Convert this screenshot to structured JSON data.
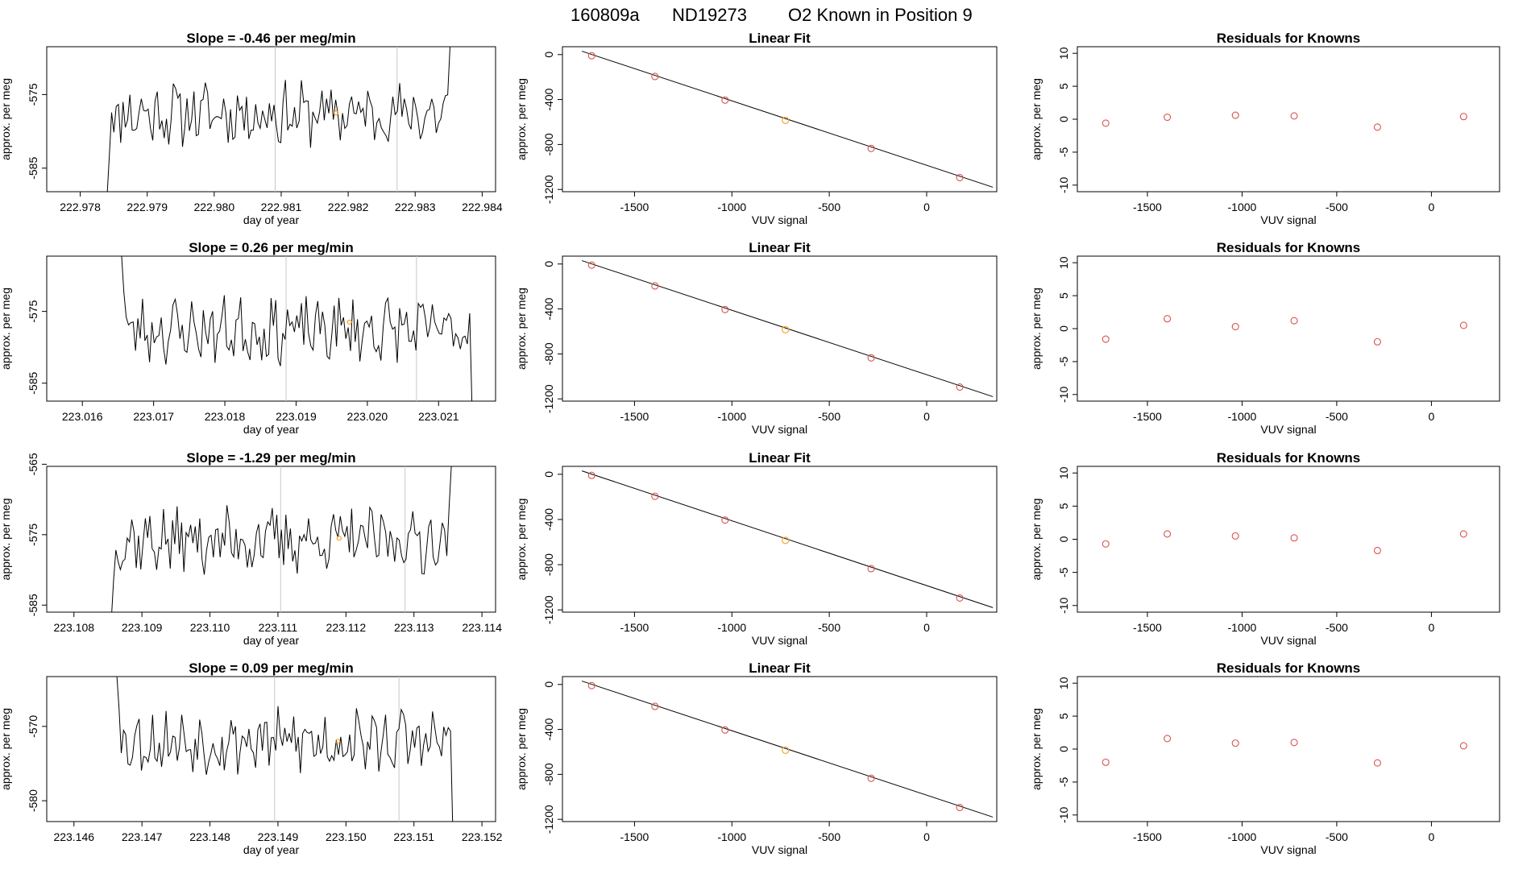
{
  "title": {
    "run": "160809a",
    "tank": "ND19273",
    "desc": "O2 Known in Position  9"
  },
  "colors": {
    "line": "#000000",
    "point": "#d9534f",
    "highlight": "#f0a020",
    "vline": "#c8c8c8"
  },
  "chart_data": [
    {
      "type": "line",
      "row": 1,
      "title": "Slope =  -0.46  per meg/min",
      "xlabel": "day of year",
      "ylabel": "approx. per meg",
      "xlim": [
        222.9775,
        222.9842
      ],
      "ylim": [
        -588.2,
        -568.5
      ],
      "xticks": [
        222.978,
        222.979,
        222.98,
        222.981,
        222.982,
        222.983,
        222.984
      ],
      "xtick_labels": [
        "222.978",
        "222.979",
        "222.980",
        "222.981",
        "222.982",
        "222.983",
        "222.984"
      ],
      "yticks": [
        -575,
        -585
      ],
      "ytick_labels": [
        "-575",
        "-585"
      ],
      "t_start": 222.9784,
      "t_end": 222.98352,
      "vlines": [
        222.98091,
        222.98273
      ],
      "marker": [
        222.98182,
        -577.5
      ],
      "seed": 11,
      "series_level": -577.6,
      "series_amp": 3.6,
      "start_y": -589.0,
      "end_y": -568.5
    },
    {
      "type": "scatter",
      "row": 1,
      "title": "Linear Fit",
      "xlabel": "VUV signal",
      "ylabel": "approx. per meg",
      "xlim": [
        -1870,
        360
      ],
      "ylim": [
        -1220,
        70
      ],
      "xticks": [
        -1500,
        -1000,
        -500,
        0
      ],
      "xtick_labels": [
        "-1500",
        "-1000",
        "-500",
        "0"
      ],
      "yticks": [
        0,
        -400,
        -800,
        -1200
      ],
      "ytick_labels": [
        "0",
        "-400",
        "-800",
        "-1200"
      ],
      "points_x": [
        -1720,
        -1395,
        -1035,
        -725,
        -285,
        170
      ],
      "points_y": [
        -10,
        -195,
        -405,
        -585,
        -835,
        -1095
      ],
      "highlight_index": 3,
      "fit_line": [
        [
          -1770,
          30
        ],
        [
          340,
          -1180
        ]
      ]
    },
    {
      "type": "scatter",
      "row": 1,
      "title": "Residuals for Knowns",
      "xlabel": "VUV signal",
      "ylabel": "approx. per meg",
      "xlim": [
        -1870,
        360
      ],
      "ylim": [
        -11,
        11
      ],
      "xticks": [
        -1500,
        -1000,
        -500,
        0
      ],
      "xtick_labels": [
        "-1500",
        "-1000",
        "-500",
        "0"
      ],
      "yticks": [
        10,
        5,
        0,
        -5,
        -10
      ],
      "ytick_labels": [
        "10",
        "5",
        "0",
        "-5",
        "-10"
      ],
      "points_x": [
        -1720,
        -1395,
        -1035,
        -725,
        -285,
        170
      ],
      "points_y": [
        -0.6,
        0.3,
        0.6,
        0.5,
        -1.2,
        0.4
      ]
    },
    {
      "type": "line",
      "row": 2,
      "title": "Slope =  0.26  per meg/min",
      "xlabel": "day of year",
      "ylabel": "approx. per meg",
      "xlim": [
        223.0155,
        223.0218
      ],
      "ylim": [
        -587.5,
        -567.3
      ],
      "xticks": [
        223.016,
        223.017,
        223.018,
        223.019,
        223.02,
        223.021
      ],
      "xtick_labels": [
        "223.016",
        "223.017",
        "223.018",
        "223.019",
        "223.020",
        "223.021"
      ],
      "yticks": [
        -575,
        -585
      ],
      "ytick_labels": [
        "-575",
        "-585"
      ],
      "t_start": 223.01655,
      "t_end": 223.02147,
      "vlines": [
        223.01886,
        223.02069
      ],
      "marker": [
        223.01975,
        -576.5
      ],
      "seed": 23,
      "series_level": -577.6,
      "series_amp": 3.8,
      "start_y": -567.0,
      "end_y": -588.5
    },
    {
      "type": "scatter",
      "row": 2,
      "title": "Linear Fit",
      "xlabel": "VUV signal",
      "ylabel": "approx. per meg",
      "xlim": [
        -1870,
        360
      ],
      "ylim": [
        -1220,
        70
      ],
      "xticks": [
        -1500,
        -1000,
        -500,
        0
      ],
      "xtick_labels": [
        "-1500",
        "-1000",
        "-500",
        "0"
      ],
      "yticks": [
        0,
        -400,
        -800,
        -1200
      ],
      "ytick_labels": [
        "0",
        "-400",
        "-800",
        "-1200"
      ],
      "points_x": [
        -1720,
        -1395,
        -1035,
        -725,
        -285,
        170
      ],
      "points_y": [
        -10,
        -195,
        -405,
        -585,
        -835,
        -1095
      ],
      "highlight_index": 3,
      "fit_line": [
        [
          -1770,
          30
        ],
        [
          340,
          -1180
        ]
      ]
    },
    {
      "type": "scatter",
      "row": 2,
      "title": "Residuals for Knowns",
      "xlabel": "VUV signal",
      "ylabel": "approx. per meg",
      "xlim": [
        -1870,
        360
      ],
      "ylim": [
        -11,
        11
      ],
      "xticks": [
        -1500,
        -1000,
        -500,
        0
      ],
      "xtick_labels": [
        "-1500",
        "-1000",
        "-500",
        "0"
      ],
      "yticks": [
        10,
        5,
        0,
        -5,
        -10
      ],
      "ytick_labels": [
        "10",
        "5",
        "0",
        "-5",
        "-10"
      ],
      "points_x": [
        -1720,
        -1395,
        -1035,
        -725,
        -285,
        170
      ],
      "points_y": [
        -1.6,
        1.5,
        0.3,
        1.2,
        -2.0,
        0.5
      ]
    },
    {
      "type": "line",
      "row": 3,
      "title": "Slope =  -1.29  per meg/min",
      "xlabel": "day of year",
      "ylabel": "approx. per meg",
      "xlim": [
        223.1076,
        223.1142
      ],
      "ylim": [
        -586.0,
        -565.3
      ],
      "xticks": [
        223.108,
        223.109,
        223.11,
        223.111,
        223.112,
        223.113,
        223.114
      ],
      "xtick_labels": [
        "223.108",
        "223.109",
        "223.110",
        "223.111",
        "223.112",
        "223.113",
        "223.114"
      ],
      "yticks": [
        -565,
        -575,
        -585
      ],
      "ytick_labels": [
        "-565",
        "-575",
        "-585"
      ],
      "t_start": 223.10855,
      "t_end": 223.11355,
      "vlines": [
        223.11104,
        223.11287
      ],
      "marker": [
        223.1119,
        -575.5
      ],
      "seed": 37,
      "series_level": -575.8,
      "series_amp": 3.9,
      "start_y": -587.0,
      "end_y": -565.3
    },
    {
      "type": "scatter",
      "row": 3,
      "title": "Linear Fit",
      "xlabel": "VUV signal",
      "ylabel": "approx. per meg",
      "xlim": [
        -1870,
        360
      ],
      "ylim": [
        -1220,
        70
      ],
      "xticks": [
        -1500,
        -1000,
        -500,
        0
      ],
      "xtick_labels": [
        "-1500",
        "-1000",
        "-500",
        "0"
      ],
      "yticks": [
        0,
        -400,
        -800,
        -1200
      ],
      "ytick_labels": [
        "0",
        "-400",
        "-800",
        "-1200"
      ],
      "points_x": [
        -1720,
        -1395,
        -1035,
        -725,
        -285,
        170
      ],
      "points_y": [
        -10,
        -195,
        -405,
        -585,
        -835,
        -1095
      ],
      "highlight_index": 3,
      "fit_line": [
        [
          -1770,
          30
        ],
        [
          340,
          -1180
        ]
      ]
    },
    {
      "type": "scatter",
      "row": 3,
      "title": "Residuals for Knowns",
      "xlabel": "VUV signal",
      "ylabel": "approx. per meg",
      "xlim": [
        -1870,
        360
      ],
      "ylim": [
        -11,
        11
      ],
      "xticks": [
        -1500,
        -1000,
        -500,
        0
      ],
      "xtick_labels": [
        "-1500",
        "-1000",
        "-500",
        "0"
      ],
      "yticks": [
        10,
        5,
        0,
        -5,
        -10
      ],
      "ytick_labels": [
        "10",
        "5",
        "0",
        "-5",
        "-10"
      ],
      "points_x": [
        -1720,
        -1395,
        -1035,
        -725,
        -285,
        170
      ],
      "points_y": [
        -0.7,
        0.8,
        0.5,
        0.2,
        -1.7,
        0.8
      ]
    },
    {
      "type": "line",
      "row": 4,
      "title": "Slope =  0.09  per meg/min",
      "xlabel": "day of year",
      "ylabel": "approx. per meg",
      "xlim": [
        223.1456,
        223.1522
      ],
      "ylim": [
        -582.8,
        -563.3
      ],
      "xticks": [
        223.146,
        223.147,
        223.148,
        223.149,
        223.15,
        223.151,
        223.152
      ],
      "xtick_labels": [
        "223.146",
        "223.147",
        "223.148",
        "223.149",
        "223.150",
        "223.151",
        "223.152"
      ],
      "yticks": [
        -570,
        -580
      ],
      "ytick_labels": [
        "-570",
        "-580"
      ],
      "t_start": 223.14663,
      "t_end": 223.15157,
      "vlines": [
        223.14895,
        223.15078
      ],
      "marker": [
        223.14988,
        -572.0
      ],
      "seed": 53,
      "series_level": -572.0,
      "series_amp": 3.6,
      "start_y": -563.0,
      "end_y": -583.5
    },
    {
      "type": "scatter",
      "row": 4,
      "title": "Linear Fit",
      "xlabel": "VUV signal",
      "ylabel": "approx. per meg",
      "xlim": [
        -1870,
        360
      ],
      "ylim": [
        -1220,
        70
      ],
      "xticks": [
        -1500,
        -1000,
        -500,
        0
      ],
      "xtick_labels": [
        "-1500",
        "-1000",
        "-500",
        "0"
      ],
      "yticks": [
        0,
        -400,
        -800,
        -1200
      ],
      "ytick_labels": [
        "0",
        "-400",
        "-800",
        "-1200"
      ],
      "points_x": [
        -1720,
        -1395,
        -1035,
        -725,
        -285,
        170
      ],
      "points_y": [
        -10,
        -195,
        -405,
        -585,
        -835,
        -1095
      ],
      "highlight_index": 3,
      "fit_line": [
        [
          -1770,
          30
        ],
        [
          340,
          -1180
        ]
      ]
    },
    {
      "type": "scatter",
      "row": 4,
      "title": "Residuals for Knowns",
      "xlabel": "VUV signal",
      "ylabel": "approx. per meg",
      "xlim": [
        -1870,
        360
      ],
      "ylim": [
        -11,
        11
      ],
      "xticks": [
        -1500,
        -1000,
        -500,
        0
      ],
      "xtick_labels": [
        "-1500",
        "-1000",
        "-500",
        "0"
      ],
      "yticks": [
        10,
        5,
        0,
        -5,
        -10
      ],
      "ytick_labels": [
        "10",
        "5",
        "0",
        "-5",
        "-10"
      ],
      "points_x": [
        -1720,
        -1395,
        -1035,
        -725,
        -285,
        170
      ],
      "points_y": [
        -2.0,
        1.6,
        0.9,
        1.0,
        -2.1,
        0.5
      ]
    }
  ]
}
